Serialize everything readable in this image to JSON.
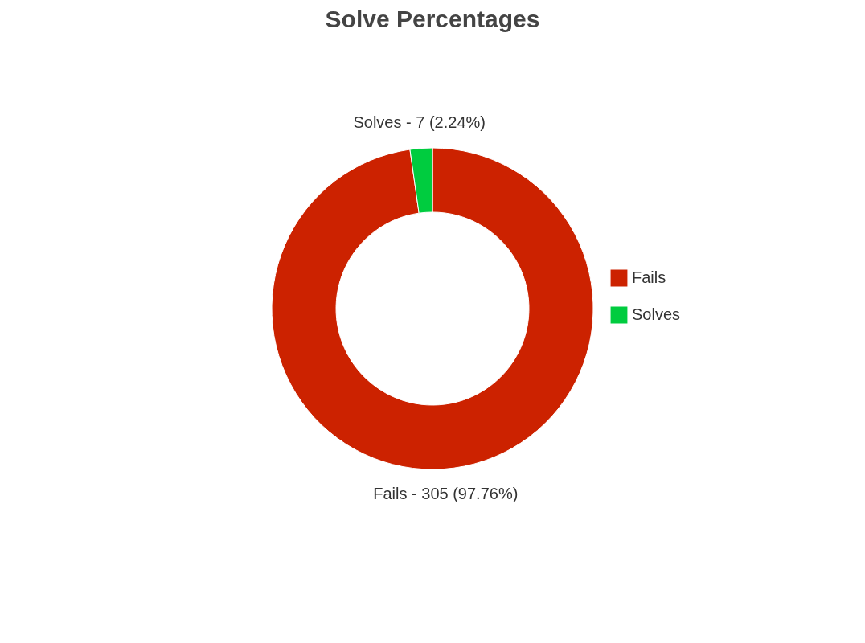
{
  "chart_data": {
    "type": "donut",
    "title": "Solve Percentages",
    "categories": [
      "Fails",
      "Solves"
    ],
    "values": [
      97.76,
      2.24
    ],
    "colors": [
      "#cc2200",
      "#00cc3f"
    ],
    "value_labels": [
      "Fails - 305 (97.76%)",
      "Solves - 7 (2.24%)"
    ],
    "legend": "right"
  }
}
